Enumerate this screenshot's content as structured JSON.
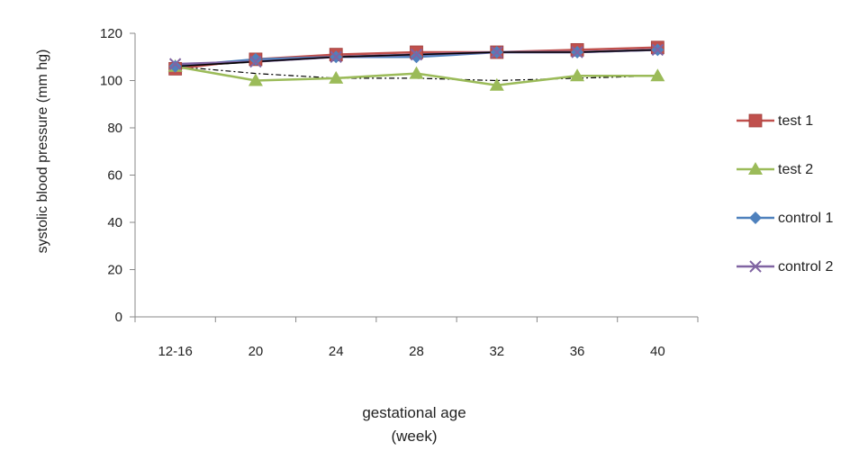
{
  "chart_data": {
    "type": "line",
    "categories": [
      "12-16",
      "20",
      "24",
      "28",
      "32",
      "36",
      "40"
    ],
    "ylabel": "systolic  blood pressure  (mm hg)",
    "xlabel_line1": "gestational age",
    "xlabel_line2": "(week)",
    "ylim": [
      0,
      120
    ],
    "yticks": [
      0,
      20,
      40,
      60,
      80,
      100,
      120
    ],
    "grid": false,
    "legend_position": "right",
    "series": [
      {
        "name": "test 1",
        "color": "#c0504d",
        "marker": "square",
        "values": [
          105,
          109,
          111,
          112,
          112,
          113,
          114
        ]
      },
      {
        "name": "test 2",
        "color": "#9bbb59",
        "marker": "triangle",
        "values": [
          106,
          100,
          101,
          103,
          98,
          102,
          102
        ]
      },
      {
        "name": "control 1",
        "color": "#4f81bd",
        "marker": "diamond",
        "values": [
          106,
          109,
          110,
          110,
          112,
          112,
          113
        ]
      },
      {
        "name": "control 2",
        "color": "#8064a2",
        "marker": "x",
        "values": [
          107,
          108,
          110,
          111,
          112,
          112,
          113
        ]
      }
    ],
    "unlabeled_lines": [
      {
        "color": "#000000",
        "style": "solid",
        "values": [
          106,
          108,
          110,
          111,
          112,
          112,
          113
        ]
      },
      {
        "color": "#000000",
        "style": "dashdot",
        "values": [
          106,
          103,
          101,
          101,
          100,
          101,
          102
        ]
      }
    ]
  }
}
